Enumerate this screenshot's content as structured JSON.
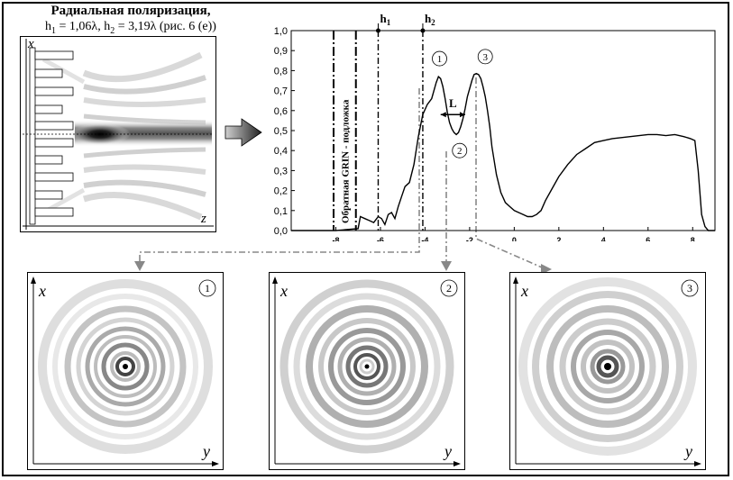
{
  "figure": {
    "title": "Радиальная поляризация,",
    "subtitle": {
      "h1_sym": "h",
      "h1_sub": "1",
      "h1_eq": " = 1,06λ, ",
      "h2_sym": "h",
      "h2_sub": "2",
      "h2_eq": " = 3,19λ (рис. 6 (е))"
    }
  },
  "left_panel": {
    "x_axis_letter": "x",
    "z_axis_letter": "z"
  },
  "chart_data": {
    "type": "line",
    "xlim": [
      -10,
      9
    ],
    "ylim": [
      0,
      1.0
    ],
    "x_ticks": [
      "-8",
      "-6",
      "-4",
      "-2",
      "0",
      "2",
      "4",
      "6",
      "8"
    ],
    "y_ticks": [
      "0,0",
      "0,1",
      "0,2",
      "0,3",
      "0,4",
      "0,5",
      "0,6",
      "0,7",
      "0,8",
      "0,9",
      "1,0"
    ],
    "grid": false,
    "series": [
      {
        "x": [
          -10,
          -8.0,
          -7.0,
          -6.9,
          -6.7,
          -6.5,
          -6.3,
          -6.1,
          -5.95,
          -5.8,
          -5.65,
          -5.5,
          -5.35,
          -5.2,
          -5.05,
          -4.9,
          -4.7,
          -4.5,
          -4.3,
          -4.1,
          -3.9,
          -3.7,
          -3.5,
          -3.4,
          -3.3,
          -3.2,
          -3.1,
          -3.0,
          -2.9,
          -2.8,
          -2.7,
          -2.6,
          -2.5,
          -2.4,
          -2.3,
          -2.2,
          -2.1,
          -2.0,
          -1.9,
          -1.8,
          -1.7,
          -1.6,
          -1.5,
          -1.4,
          -1.3,
          -1.2,
          -1.1,
          -1.0,
          -0.8,
          -0.6,
          -0.4,
          -0.2,
          0.0,
          0.2,
          0.4,
          0.6,
          0.8,
          1.0,
          1.2,
          1.4,
          1.7,
          2.0,
          2.4,
          2.8,
          3.2,
          3.6,
          4.0,
          4.4,
          4.8,
          5.2,
          5.6,
          6.0,
          6.4,
          6.8,
          7.2,
          7.6,
          7.9,
          8.1,
          8.25,
          8.4,
          8.55,
          8.7,
          9.0
        ],
        "y": [
          0.0,
          0.0,
          0.01,
          0.07,
          0.06,
          0.05,
          0.04,
          0.07,
          0.06,
          0.03,
          0.08,
          0.09,
          0.06,
          0.12,
          0.17,
          0.22,
          0.24,
          0.33,
          0.47,
          0.58,
          0.63,
          0.66,
          0.74,
          0.77,
          0.76,
          0.72,
          0.66,
          0.59,
          0.54,
          0.51,
          0.49,
          0.48,
          0.49,
          0.52,
          0.56,
          0.61,
          0.67,
          0.71,
          0.75,
          0.78,
          0.785,
          0.78,
          0.76,
          0.72,
          0.67,
          0.6,
          0.52,
          0.42,
          0.28,
          0.19,
          0.14,
          0.12,
          0.1,
          0.09,
          0.08,
          0.07,
          0.07,
          0.08,
          0.1,
          0.15,
          0.21,
          0.27,
          0.33,
          0.38,
          0.41,
          0.44,
          0.45,
          0.46,
          0.465,
          0.47,
          0.475,
          0.48,
          0.48,
          0.475,
          0.48,
          0.47,
          0.46,
          0.45,
          0.3,
          0.08,
          0.02,
          0.0,
          0.0
        ]
      }
    ],
    "vertical_markers": [
      {
        "x": -8.1,
        "style": "dash-dot-thick"
      },
      {
        "x": -7.1,
        "style": "dash-dot-thick"
      },
      {
        "x": -6.1,
        "style": "dash-dot",
        "label": "h1",
        "label_main": "h",
        "label_sub": "1"
      },
      {
        "x": -4.1,
        "style": "dash-dot",
        "label": "h2",
        "label_main": "h",
        "label_sub": "2"
      }
    ],
    "region_label": "Обратная GRIN - подложка",
    "annotations": {
      "L_label": "L",
      "peak_labels": [
        "1",
        "2",
        "3"
      ]
    }
  },
  "subplots": [
    {
      "number": "1",
      "x_letter": "x",
      "y_letter": "y"
    },
    {
      "number": "2",
      "x_letter": "x",
      "y_letter": "y"
    },
    {
      "number": "3",
      "x_letter": "x",
      "y_letter": "y"
    }
  ]
}
